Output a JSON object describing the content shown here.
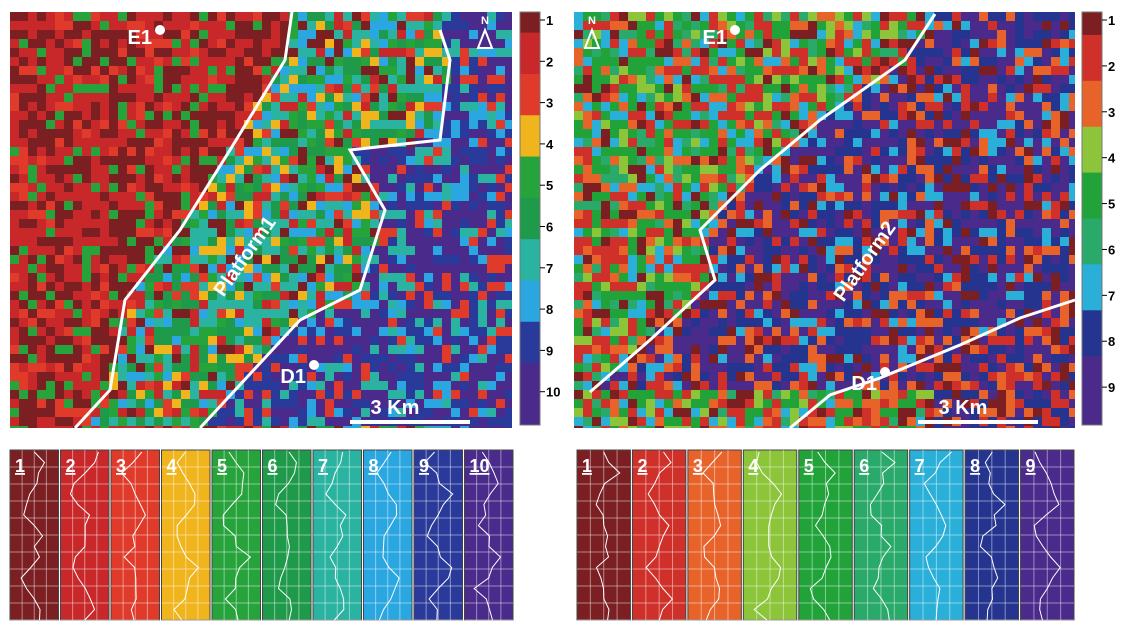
{
  "maps": [
    {
      "labels": {
        "well_north": "E1",
        "well_south": "D1",
        "platform": "Platform1",
        "north": "N",
        "scale": "3 Km"
      },
      "colorbar": [
        "1",
        "2",
        "3",
        "4",
        "5",
        "6",
        "7",
        "8",
        "9",
        "10"
      ],
      "classes": [
        "1",
        "2",
        "3",
        "4",
        "5",
        "6",
        "7",
        "8",
        "9",
        "10"
      ]
    },
    {
      "labels": {
        "well_north": "E1",
        "well_south": "D1",
        "platform": "Platform2",
        "north": "N",
        "scale": "3 Km"
      },
      "colorbar": [
        "1",
        "2",
        "3",
        "4",
        "5",
        "6",
        "7",
        "8",
        "9"
      ],
      "classes": [
        "1",
        "2",
        "3",
        "4",
        "5",
        "6",
        "7",
        "8",
        "9"
      ]
    }
  ]
}
